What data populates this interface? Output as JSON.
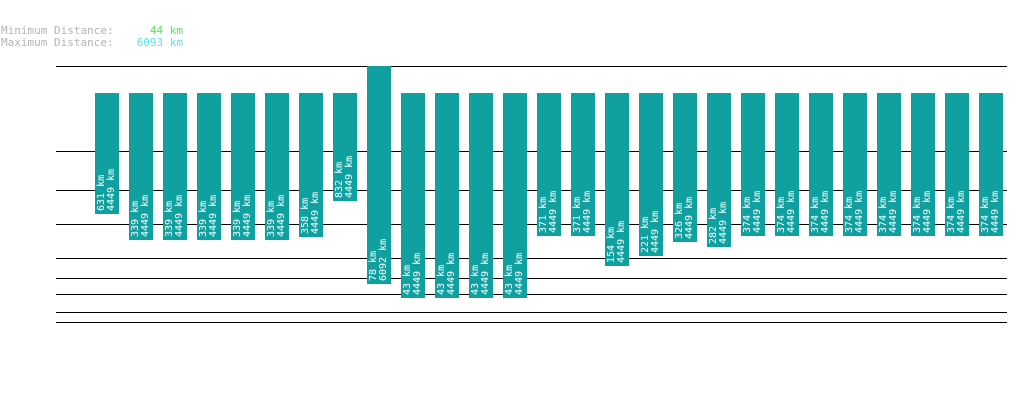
{
  "legend": {
    "min_label": "Minimum Distance:",
    "min_value": "44 km",
    "max_label": "Maximum Distance:",
    "max_value": "6093 km"
  },
  "colors": {
    "bar": "#10a0a0",
    "line": "#000000",
    "min_text": "#55e655",
    "max_text": "#55e6e6",
    "legend_label": "#b4b4b4"
  },
  "chart_data": {
    "type": "bar",
    "title": "",
    "grid": true,
    "bars": [
      {
        "top_km": 631,
        "bottom_km": 4449
      },
      {
        "top_km": 339,
        "bottom_km": 4449
      },
      {
        "top_km": 339,
        "bottom_km": 4449
      },
      {
        "top_km": 339,
        "bottom_km": 4449
      },
      {
        "top_km": 339,
        "bottom_km": 4449
      },
      {
        "top_km": 339,
        "bottom_km": 4449
      },
      {
        "top_km": 358,
        "bottom_km": 4449
      },
      {
        "top_km": 832,
        "bottom_km": 4449
      },
      {
        "top_km": 78,
        "bottom_km": 6092
      },
      {
        "top_km": 43,
        "bottom_km": 4449
      },
      {
        "top_km": 43,
        "bottom_km": 4449
      },
      {
        "top_km": 43,
        "bottom_km": 4449
      },
      {
        "top_km": 43,
        "bottom_km": 4449
      },
      {
        "top_km": 371,
        "bottom_km": 4449
      },
      {
        "top_km": 371,
        "bottom_km": 4449
      },
      {
        "top_km": 154,
        "bottom_km": 4449
      },
      {
        "top_km": 221,
        "bottom_km": 4449
      },
      {
        "top_km": 326,
        "bottom_km": 4449
      },
      {
        "top_km": 282,
        "bottom_km": 4449
      },
      {
        "top_km": 374,
        "bottom_km": 4449
      },
      {
        "top_km": 374,
        "bottom_km": 4449
      },
      {
        "top_km": 374,
        "bottom_km": 4449
      },
      {
        "top_km": 374,
        "bottom_km": 4449
      },
      {
        "top_km": 374,
        "bottom_km": 4449
      },
      {
        "top_km": 374,
        "bottom_km": 4449
      },
      {
        "top_km": 374,
        "bottom_km": 4449
      },
      {
        "top_km": 374,
        "bottom_km": 4449
      }
    ],
    "unit": "km"
  }
}
